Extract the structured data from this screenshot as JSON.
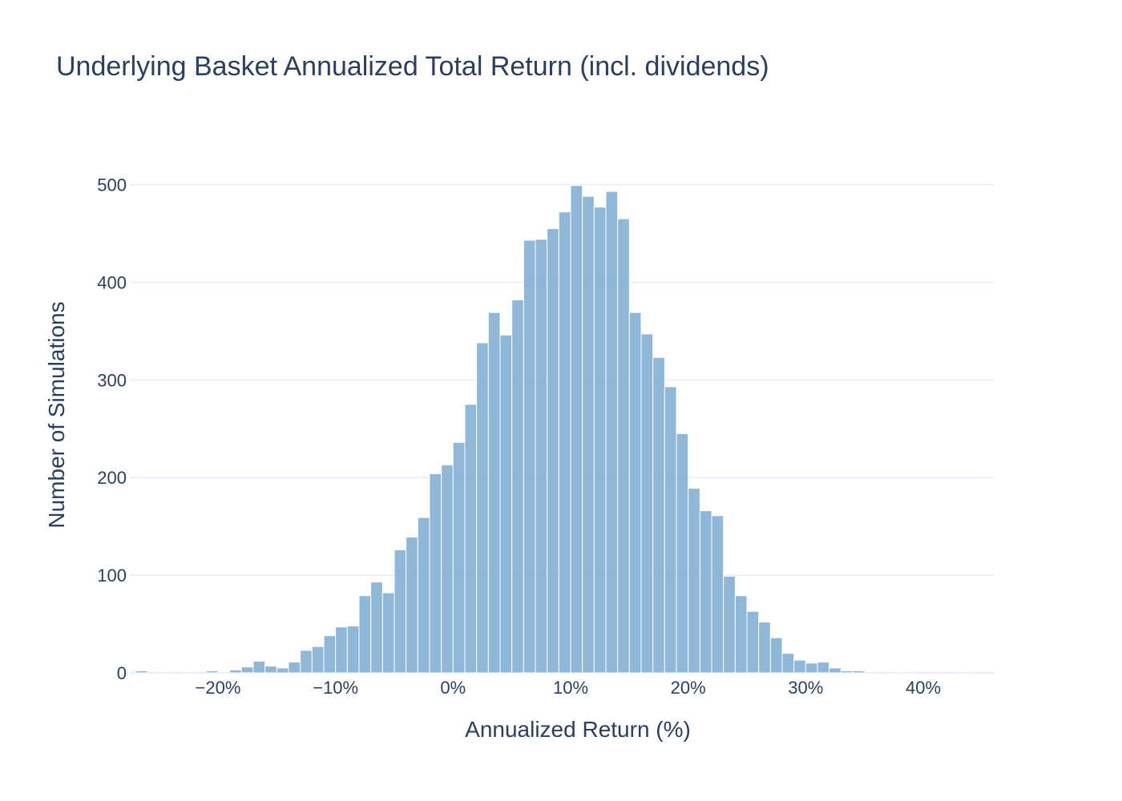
{
  "chart_data": {
    "type": "bar",
    "title": "Underlying Basket Annualized Total Return (incl. dividends)",
    "xlabel": "Annualized Return (%)",
    "ylabel": "Number of Simulations",
    "xlim": [
      -27.5,
      46
    ],
    "ylim": [
      0,
      525
    ],
    "bin_start": -27,
    "bin_width": 1,
    "x_ticks": [
      {
        "value": -20,
        "label": "−20%"
      },
      {
        "value": -10,
        "label": "−10%"
      },
      {
        "value": 0,
        "label": "0%"
      },
      {
        "value": 10,
        "label": "10%"
      },
      {
        "value": 20,
        "label": "20%"
      },
      {
        "value": 30,
        "label": "30%"
      },
      {
        "value": 40,
        "label": "40%"
      }
    ],
    "y_ticks": [
      {
        "value": 0,
        "label": "0"
      },
      {
        "value": 100,
        "label": "100"
      },
      {
        "value": 200,
        "label": "200"
      },
      {
        "value": 300,
        "label": "300"
      },
      {
        "value": 400,
        "label": "400"
      },
      {
        "value": 500,
        "label": "500"
      }
    ],
    "grid": true,
    "colors": {
      "bar": "#7fadd3",
      "grid": "#ebf0f8",
      "text": "#2a3f5f"
    },
    "values": [
      2,
      0,
      1,
      0,
      1,
      0,
      2,
      1,
      3,
      6,
      12,
      7,
      5,
      11,
      23,
      27,
      38,
      47,
      48,
      79,
      93,
      82,
      126,
      139,
      159,
      204,
      213,
      236,
      275,
      338,
      369,
      346,
      382,
      443,
      444,
      455,
      472,
      499,
      488,
      477,
      493,
      465,
      369,
      347,
      323,
      293,
      245,
      189,
      166,
      161,
      99,
      79,
      63,
      52,
      36,
      20,
      13,
      10,
      11,
      5,
      2,
      2,
      1,
      0,
      1,
      1,
      0,
      0,
      0,
      0,
      1,
      0
    ]
  }
}
